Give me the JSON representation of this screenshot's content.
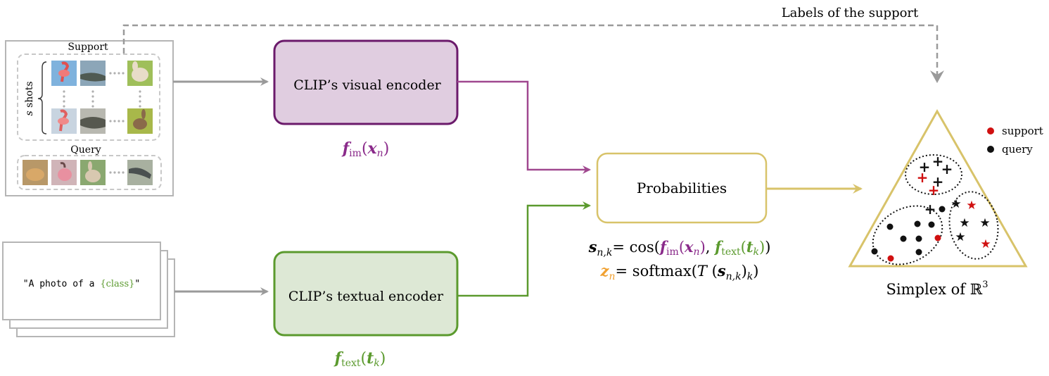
{
  "support_title": "Support",
  "shots_label": {
    "var": "s",
    "word": "shots"
  },
  "query_title": "Query",
  "visual_encoder_label": "CLIP’s visual encoder",
  "textual_encoder_label": "CLIP’s textual encoder",
  "probabilities_label": "Probabilities",
  "labels_support_label": "Labels of the support",
  "prompt": {
    "prefix": "\"A photo of a ",
    "class_token": "{class}",
    "suffix": "\""
  },
  "f_im": {
    "f": "f",
    "sub": "im",
    "arg": "x",
    "argsub": "n"
  },
  "f_text": {
    "f": "f",
    "sub": "text",
    "arg": "t",
    "argsub": "k"
  },
  "eq1": {
    "lhs": "s",
    "lhs_sub": "n,k",
    "eq": "= cos(",
    "comma": ", ",
    "close": ")"
  },
  "eq2": {
    "lhs": "z",
    "lhs_sub": "n",
    "eq": "= softmax(",
    "T": "T",
    "inner": "s",
    "inner_sub": "n,k",
    "tail_sub": "k"
  },
  "simplex_label": {
    "prefix": "Simplex of ",
    "R": "ℝ",
    "sup": "3"
  },
  "legend": {
    "support": "support",
    "query": "query"
  },
  "colors": {
    "visual": "#6b1a6b",
    "visual_fill": "#e0cde0",
    "text": "#5b9a2e",
    "text_fill": "#dde8d5",
    "prob": "#d8c36a",
    "arrow_gray": "#9a9a9a",
    "support_red": "#d01010",
    "orange": "#f0a030"
  }
}
